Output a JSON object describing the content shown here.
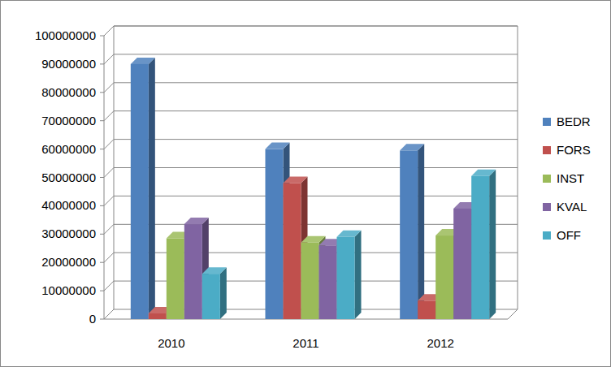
{
  "chart_data": {
    "type": "bar",
    "categories": [
      "2010",
      "2011",
      "2012"
    ],
    "series": [
      {
        "name": "BEDR",
        "color": "#4F81BD",
        "values": [
          90000000,
          60000000,
          59500000
        ]
      },
      {
        "name": "FORS",
        "color": "#C0504D",
        "values": [
          2000000,
          48000000,
          6500000
        ]
      },
      {
        "name": "INST",
        "color": "#9BBB59",
        "values": [
          28500000,
          27000000,
          29500000
        ]
      },
      {
        "name": "KVAL",
        "color": "#8064A2",
        "values": [
          33500000,
          26000000,
          39000000
        ]
      },
      {
        "name": "OFF",
        "color": "#4BACC6",
        "values": [
          16000000,
          29000000,
          50500000
        ]
      }
    ],
    "ylim": [
      0,
      100000000
    ],
    "yticks": [
      0,
      10000000,
      20000000,
      30000000,
      40000000,
      50000000,
      60000000,
      70000000,
      80000000,
      90000000,
      100000000
    ],
    "grid": true,
    "legend": "right"
  }
}
